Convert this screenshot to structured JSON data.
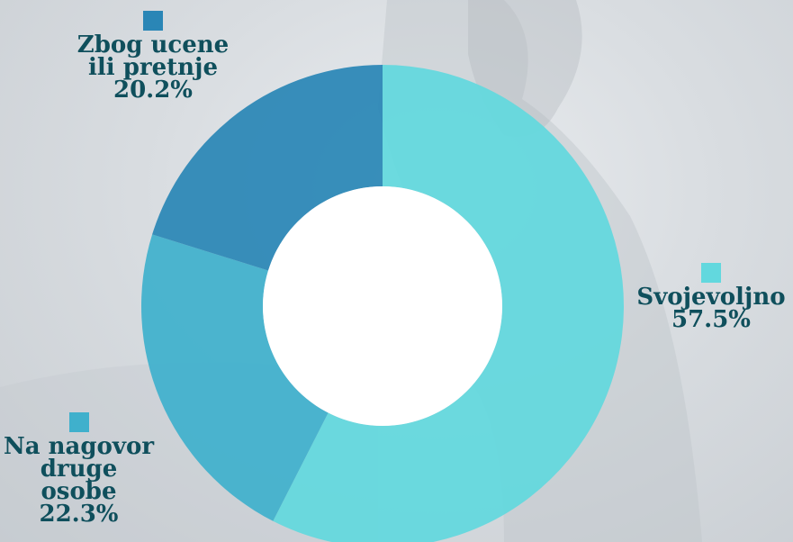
{
  "chart_data": {
    "type": "pie",
    "variant": "donut",
    "slices": [
      {
        "label_lines": [
          "Svojevoljno"
        ],
        "pct_label": "57.5%",
        "value": 57.5,
        "color": "#62d8de"
      },
      {
        "label_lines": [
          "Na nagovor",
          "druge osobe"
        ],
        "pct_label": "22.3%",
        "value": 22.3,
        "color": "#3fb0cc"
      },
      {
        "label_lines": [
          "Zbog ucene",
          "ili pretnje"
        ],
        "pct_label": "20.2%",
        "value": 20.2,
        "color": "#2a86b6"
      }
    ]
  },
  "colors": {
    "label_text": "#0f4f5c"
  }
}
